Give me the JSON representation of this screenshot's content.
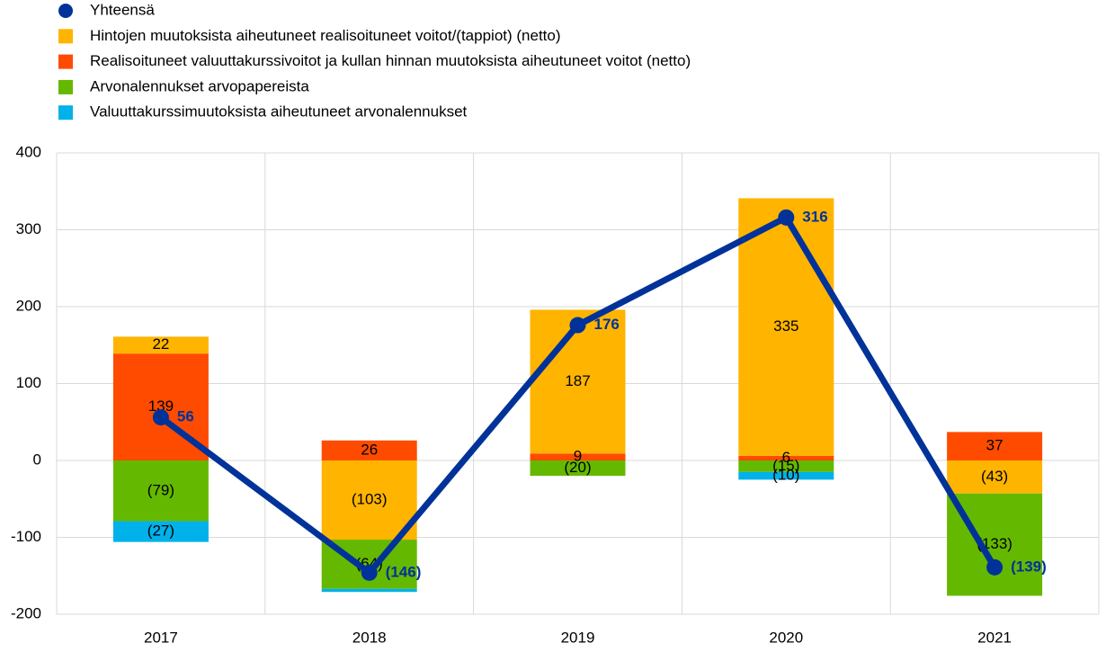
{
  "chart_data": {
    "type": "bar",
    "categories": [
      "2017",
      "2018",
      "2019",
      "2020",
      "2021"
    ],
    "ylim": [
      -200,
      400
    ],
    "yticks": [
      -200,
      -100,
      0,
      100,
      200,
      300,
      400
    ],
    "grid": true,
    "series": [
      {
        "name": "Yhteensä",
        "type": "line",
        "color": "#003299",
        "values": [
          56,
          -146,
          176,
          316,
          -139
        ],
        "value_labels": [
          "56",
          "(146)",
          "176",
          "316",
          "(139)"
        ]
      },
      {
        "name": "Hintojen muutoksista aiheutuneet realisoituneet voitot/(tappiot) (netto)",
        "color": "#ffb400",
        "values": [
          22,
          -103,
          187,
          335,
          -43
        ],
        "value_labels": [
          "22",
          "(103)",
          "187",
          "335",
          "(43)"
        ]
      },
      {
        "name": "Realisoituneet valuuttakurssivoitot ja kullan hinnan muutoksista aiheutuneet voitot (netto)",
        "color": "#ff4b00",
        "values": [
          139,
          26,
          9,
          6,
          37
        ],
        "value_labels": [
          "139",
          "26",
          "9",
          "6",
          "37"
        ]
      },
      {
        "name": "Arvonalennukset arvopapereista",
        "color": "#65b800",
        "values": [
          -79,
          -64,
          -20,
          -15,
          -133
        ],
        "value_labels": [
          "(79)",
          "(64)",
          "(20)",
          "(15)",
          "(133)"
        ]
      },
      {
        "name": "Valuuttakurssimuutoksista aiheutuneet arvonalennukset",
        "color": "#00b1ea",
        "values": [
          -27,
          -4,
          0,
          -10,
          0
        ],
        "value_labels": [
          "(27)",
          null,
          null,
          "(10)",
          null
        ]
      }
    ]
  }
}
